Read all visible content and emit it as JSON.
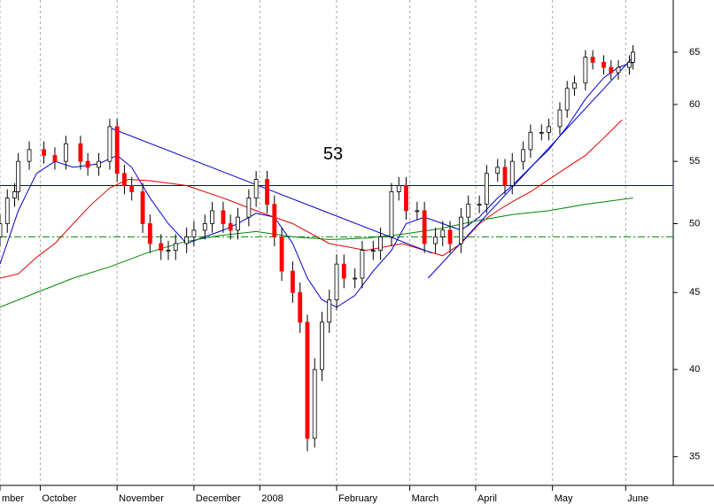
{
  "chart_data": {
    "type": "candlestick",
    "log_scale": true,
    "ylim": [
      33.5,
      70.4
    ],
    "yticks": [
      35,
      40,
      45,
      50,
      55,
      60,
      65
    ],
    "xlim": [
      0,
      184
    ],
    "xticks": [
      {
        "value": 0,
        "label": "mber"
      },
      {
        "value": 11,
        "label": "October"
      },
      {
        "value": 32,
        "label": "November"
      },
      {
        "value": 53,
        "label": "December"
      },
      {
        "value": 71,
        "label": "2008"
      },
      {
        "value": 92,
        "label": "February"
      },
      {
        "value": 112,
        "label": "March"
      },
      {
        "value": 130,
        "label": "April"
      },
      {
        "value": 151,
        "label": "May"
      },
      {
        "value": 171,
        "label": "June"
      }
    ],
    "grid": true,
    "up_color": "#ffffff",
    "down_color": "#ff0000",
    "x": [
      0,
      2,
      4,
      5,
      8,
      12,
      15,
      18,
      22,
      24,
      27,
      30,
      32,
      34,
      36,
      39,
      41,
      44,
      46,
      48,
      51,
      53,
      56,
      58,
      61,
      63,
      65,
      68,
      70,
      73,
      75,
      77,
      80,
      82,
      84,
      86,
      88,
      90,
      92,
      94,
      97,
      99,
      102,
      104,
      107,
      109,
      111,
      114,
      116,
      119,
      121,
      123,
      126,
      128,
      131,
      133,
      136,
      138,
      140,
      143,
      145,
      148,
      150,
      153,
      155,
      157,
      160,
      162,
      165,
      167,
      169,
      172,
      173
    ],
    "open": [
      49,
      50,
      52,
      52.5,
      55,
      56,
      55.5,
      55,
      56.5,
      55,
      54.5,
      55,
      58,
      54,
      53,
      52.5,
      50,
      48.5,
      48,
      48,
      48.5,
      49,
      49.5,
      50,
      51,
      50,
      49.5,
      50.5,
      52,
      53.5,
      51.5,
      49,
      46.5,
      45,
      43,
      36,
      40,
      43,
      44.5,
      47,
      46,
      46,
      48,
      48,
      49,
      52.5,
      53,
      51,
      51,
      48.5,
      49,
      49.5,
      48.5,
      50.5,
      51.5,
      51.5,
      54,
      54.5,
      53,
      55,
      56,
      57.5,
      57.5,
      58,
      59.5,
      61.5,
      62,
      64.5,
      64,
      63.5,
      63,
      63.5,
      64
    ],
    "high": [
      50.7,
      52.7,
      53.2,
      55.7,
      56.7,
      56.7,
      56.2,
      57.2,
      57.2,
      55.7,
      55.7,
      58.7,
      58.7,
      54.7,
      53.7,
      53.2,
      50.7,
      49.2,
      48.7,
      49.2,
      49.7,
      50.2,
      50.7,
      51.7,
      51.7,
      50.7,
      51.2,
      52.7,
      54.2,
      54.2,
      52.2,
      49.7,
      47.2,
      45.7,
      43.5,
      40.7,
      43.7,
      45.2,
      47.7,
      47.7,
      46.7,
      48.7,
      48.7,
      49.7,
      53.2,
      53.7,
      53.7,
      51.7,
      51.7,
      49.7,
      50.2,
      50.2,
      51.2,
      52.2,
      52.2,
      54.7,
      55.2,
      55.2,
      55.7,
      56.7,
      58.2,
      58.2,
      58.7,
      60.2,
      62.2,
      62.7,
      65.2,
      65.2,
      64.7,
      64.2,
      64.2,
      64.7,
      65.7
    ],
    "low": [
      48.3,
      49.3,
      51.3,
      51.8,
      54.3,
      54.8,
      54.3,
      54.3,
      54.3,
      53.8,
      53.8,
      54.3,
      53.3,
      52.3,
      51.8,
      49.3,
      47.8,
      47.3,
      47.3,
      47.3,
      47.8,
      48.3,
      48.8,
      49.3,
      49.3,
      48.8,
      48.8,
      49.8,
      51.3,
      50.8,
      48.3,
      45.8,
      44.3,
      42.3,
      35.3,
      35.5,
      39.3,
      42.3,
      43.8,
      45.3,
      45.3,
      45.3,
      47.3,
      47.3,
      48.3,
      51.8,
      50.3,
      50.3,
      47.8,
      47.8,
      48.3,
      47.8,
      47.8,
      49.8,
      50.8,
      50.8,
      53.3,
      52.3,
      52.3,
      54.3,
      55.3,
      56.8,
      56.8,
      57.3,
      58.8,
      60.8,
      61.3,
      63.3,
      62.8,
      62.3,
      62.3,
      62.8,
      63.3
    ],
    "close": [
      50,
      52,
      52.5,
      55,
      56,
      55.5,
      55,
      56.5,
      55,
      54.5,
      55,
      58,
      54,
      53,
      52.5,
      50,
      48.5,
      48,
      48,
      48.5,
      49,
      49.5,
      50,
      51,
      50,
      49.5,
      50.5,
      52,
      53.5,
      51.5,
      49,
      46.5,
      45,
      43,
      36,
      40,
      43,
      44.5,
      47,
      46,
      46,
      48,
      48,
      49,
      52.5,
      53,
      51,
      51,
      48.5,
      49,
      49.5,
      48.5,
      50.5,
      51.5,
      51.5,
      54,
      54.5,
      53,
      55,
      56,
      57.5,
      57.5,
      58,
      59.5,
      61.5,
      62,
      64.5,
      64,
      63.5,
      63,
      63.5,
      64,
      65
    ],
    "series": [
      {
        "color": "#0000cc",
        "x": [
          0,
          5,
          10,
          15,
          20,
          27,
          32,
          36,
          41,
          46,
          51,
          56,
          61,
          65,
          70,
          75,
          80,
          84,
          88,
          92,
          97,
          102,
          107,
          111,
          116,
          121,
          126,
          131,
          136,
          140,
          145,
          150,
          155,
          160,
          165,
          169,
          173
        ],
        "values": [
          47,
          51,
          54,
          55,
          54.5,
          54.8,
          55.5,
          54.5,
          52,
          50,
          48.5,
          49,
          49.5,
          50,
          50.8,
          50.5,
          48.5,
          46,
          44.5,
          44,
          44.8,
          46.5,
          48,
          50,
          50.5,
          50,
          49.5,
          50.5,
          52,
          53,
          54.5,
          56,
          58,
          60.5,
          62.5,
          63.5,
          64
        ]
      },
      {
        "color": "#dd0000",
        "x": [
          0,
          5,
          10,
          15,
          20,
          25,
          30,
          35,
          41,
          51,
          61,
          70,
          80,
          90,
          100,
          110,
          116,
          121,
          126,
          131,
          136,
          140,
          145,
          150,
          155,
          160,
          165,
          170
        ],
        "values": [
          46,
          46.3,
          47.5,
          48.5,
          50,
          51.5,
          52.8,
          53.5,
          53.4,
          53,
          52,
          51,
          50,
          48.5,
          48,
          48.5,
          48,
          47.6,
          48.5,
          50,
          51,
          51.7,
          52.5,
          53.5,
          54.5,
          55.5,
          57,
          58.6
        ]
      },
      {
        "color": "#008800",
        "x": [
          0,
          10,
          20,
          30,
          40,
          50,
          60,
          70,
          80,
          90,
          100,
          110,
          120,
          130,
          140,
          150,
          160,
          173
        ],
        "values": [
          44,
          45,
          46,
          46.8,
          47.8,
          48.6,
          49.1,
          49.4,
          49,
          48.8,
          48.9,
          49.2,
          49.6,
          50.2,
          50.7,
          51,
          51.5,
          52
        ]
      }
    ],
    "hlines": [
      {
        "value": 53,
        "label": "53",
        "color": "#0000cc",
        "dash": false
      },
      {
        "value": 49,
        "color": "#008800",
        "dash": true
      }
    ],
    "trendlines": [
      {
        "x": [
          30,
          118
        ],
        "y": [
          57.9,
          47.8
        ],
        "color": "#0000cc"
      },
      {
        "x": [
          117,
          173
        ],
        "y": [
          46,
          64.5
        ],
        "color": "#0000cc"
      }
    ]
  }
}
